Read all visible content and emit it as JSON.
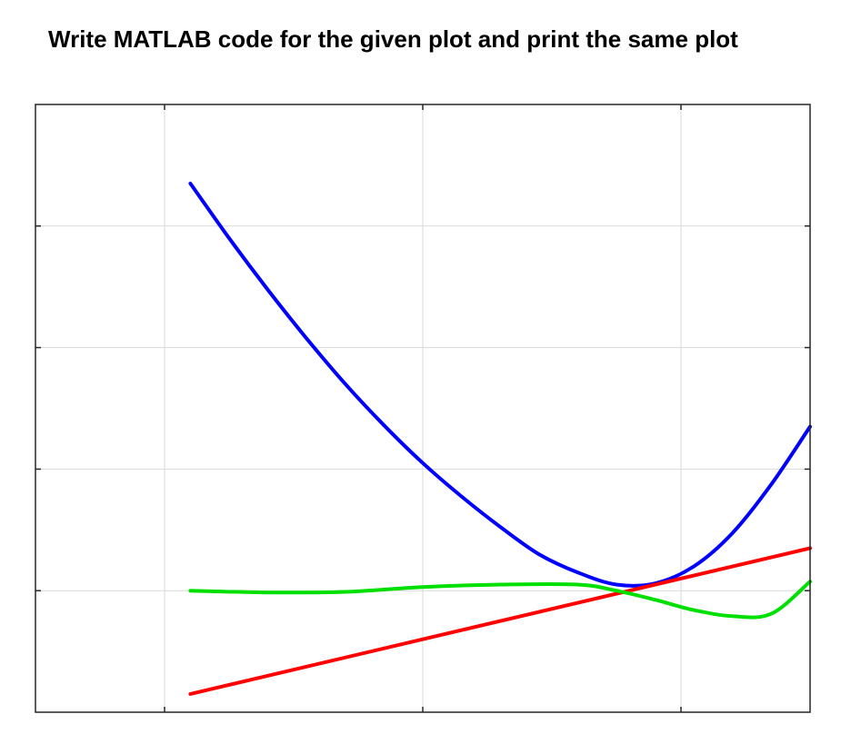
{
  "heading": "Write MATLAB code for the given plot and print the same plot",
  "chart_data": {
    "type": "line",
    "title": "",
    "xlabel": "",
    "ylabel": "",
    "xlim": [
      -3,
      3
    ],
    "ylim": [
      -2,
      8
    ],
    "grid": true,
    "x_ticks": [
      -2,
      0,
      2
    ],
    "y_ticks": [
      0,
      2,
      4,
      6
    ],
    "series": [
      {
        "color": "#0000ff",
        "x": [
          -1.8,
          -1.5,
          -1.2,
          -0.9,
          -0.6,
          -0.3,
          0.0,
          0.3,
          0.6,
          0.9,
          1.2,
          1.5,
          1.8,
          2.1,
          2.4,
          2.7,
          3.0
        ],
        "y": [
          6.7,
          5.8,
          4.95,
          4.15,
          3.4,
          2.72,
          2.1,
          1.55,
          1.05,
          0.6,
          0.3,
          0.1,
          0.12,
          0.4,
          0.95,
          1.75,
          2.7
        ]
      },
      {
        "color": "#ff0000",
        "x": [
          -1.8,
          3.0
        ],
        "y": [
          -1.7,
          0.7
        ]
      },
      {
        "color": "#00e000",
        "x": [
          -1.8,
          -1.2,
          -0.6,
          0.0,
          0.6,
          1.2,
          1.5,
          1.8,
          2.1,
          2.4,
          2.7,
          3.0
        ],
        "y": [
          0.0,
          -0.03,
          -0.02,
          0.06,
          0.1,
          0.1,
          0.0,
          -0.15,
          -0.32,
          -0.42,
          -0.38,
          0.15
        ]
      }
    ]
  }
}
